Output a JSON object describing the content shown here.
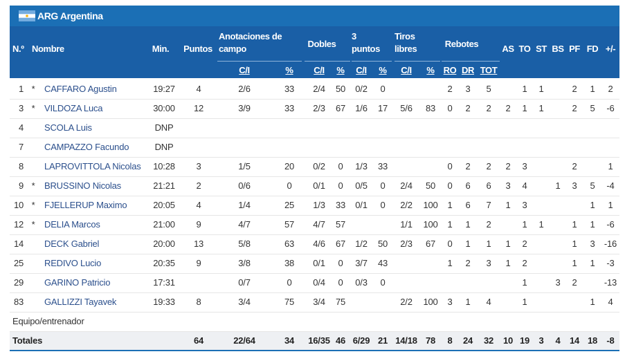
{
  "team": {
    "name": "ARG Argentina"
  },
  "table": {
    "headers": [
      "N.º",
      "Nombre",
      "Min.",
      "Puntos",
      "Anotaciones de campo",
      "Dobles",
      "3 puntos",
      "Tiros libres",
      "Rebotes",
      "AS",
      "TO",
      "ST",
      "BS",
      "PF",
      "FD",
      "+/-"
    ],
    "subheaders": [
      "C/I",
      "%",
      "C/I",
      "%",
      "C/I",
      "%",
      "C/I",
      "%",
      "RO",
      "DR",
      "TOT"
    ],
    "rows": [
      [
        "1",
        "*",
        "CAFFARO Agustin",
        "19:27",
        "4",
        "2/6",
        "33",
        "2/4",
        "50",
        "0/2",
        "0",
        null,
        null,
        "2",
        "3",
        "5",
        null,
        "1",
        "1",
        null,
        "2",
        "1",
        "2"
      ],
      [
        "3",
        "*",
        "VILDOZA Luca",
        "30:00",
        "12",
        "3/9",
        "33",
        "2/3",
        "67",
        "1/6",
        "17",
        "5/6",
        "83",
        "0",
        "2",
        "2",
        "2",
        "1",
        "1",
        null,
        "2",
        "5",
        "-6"
      ],
      [
        "4",
        null,
        "SCOLA Luis",
        "DNP",
        null,
        null,
        null,
        null,
        null,
        null,
        null,
        null,
        null,
        null,
        null,
        null,
        null,
        null,
        null,
        null,
        null,
        null,
        null
      ],
      [
        "7",
        null,
        "CAMPAZZO Facundo",
        "DNP",
        null,
        null,
        null,
        null,
        null,
        null,
        null,
        null,
        null,
        null,
        null,
        null,
        null,
        null,
        null,
        null,
        null,
        null,
        null
      ],
      [
        "8",
        null,
        "LAPROVITTOLA Nicolas",
        "10:28",
        "3",
        "1/5",
        "20",
        "0/2",
        "0",
        "1/3",
        "33",
        null,
        null,
        "0",
        "2",
        "2",
        "2",
        "3",
        null,
        null,
        "2",
        null,
        "1"
      ],
      [
        "9",
        "*",
        "BRUSSINO Nicolas",
        "21:21",
        "2",
        "0/6",
        "0",
        "0/1",
        "0",
        "0/5",
        "0",
        "2/4",
        "50",
        "0",
        "6",
        "6",
        "3",
        "4",
        null,
        "1",
        "3",
        "5",
        "-4"
      ],
      [
        "10",
        "*",
        "FJELLERUP Maximo",
        "20:05",
        "4",
        "1/4",
        "25",
        "1/3",
        "33",
        "0/1",
        "0",
        "2/2",
        "100",
        "1",
        "6",
        "7",
        "1",
        "3",
        null,
        null,
        null,
        "1",
        "1"
      ],
      [
        "12",
        "*",
        "DELIA Marcos",
        "21:00",
        "9",
        "4/7",
        "57",
        "4/7",
        "57",
        null,
        null,
        "1/1",
        "100",
        "1",
        "1",
        "2",
        null,
        "1",
        "1",
        null,
        "1",
        "1",
        "-6"
      ],
      [
        "14",
        null,
        "DECK Gabriel",
        "20:00",
        "13",
        "5/8",
        "63",
        "4/6",
        "67",
        "1/2",
        "50",
        "2/3",
        "67",
        "0",
        "1",
        "1",
        "1",
        "2",
        null,
        null,
        "1",
        "3",
        "-16"
      ],
      [
        "25",
        null,
        "REDIVO Lucio",
        "20:35",
        "9",
        "3/8",
        "38",
        "0/1",
        "0",
        "3/7",
        "43",
        null,
        null,
        "1",
        "2",
        "3",
        "1",
        "2",
        null,
        null,
        "1",
        "1",
        "-3"
      ],
      [
        "29",
        null,
        "GARINO Patricio",
        "17:31",
        null,
        "0/7",
        "0",
        "0/4",
        "0",
        "0/3",
        "0",
        null,
        null,
        null,
        null,
        null,
        null,
        "1",
        null,
        "3",
        "2",
        null,
        "-13"
      ],
      [
        "83",
        null,
        "GALLIZZI Tayavek",
        "19:33",
        "8",
        "3/4",
        "75",
        "3/4",
        "75",
        null,
        null,
        "2/2",
        "100",
        "3",
        "1",
        "4",
        null,
        "1",
        null,
        null,
        null,
        "1",
        "4"
      ]
    ],
    "team_row": "Equipo/entrenador",
    "totals": {
      "label": "Totales",
      "cells": [
        null,
        null,
        null,
        null,
        "64",
        "22/64",
        "34",
        "16/35",
        "46",
        "6/29",
        "21",
        "14/18",
        "78",
        "8",
        "24",
        "32",
        "10",
        "19",
        "3",
        "4",
        "14",
        "18",
        "-8"
      ]
    }
  }
}
